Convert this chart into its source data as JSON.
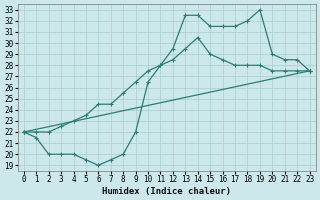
{
  "xlabel": "Humidex (Indice chaleur)",
  "bg_color": "#cce8ea",
  "grid_color": "#aacdd0",
  "line_color": "#2e7d72",
  "xlim": [
    -0.5,
    23.5
  ],
  "ylim": [
    18.5,
    33.5
  ],
  "xticks": [
    0,
    1,
    2,
    3,
    4,
    5,
    6,
    7,
    8,
    9,
    10,
    11,
    12,
    13,
    14,
    15,
    16,
    17,
    18,
    19,
    20,
    21,
    22,
    23
  ],
  "yticks": [
    19,
    20,
    21,
    22,
    23,
    24,
    25,
    26,
    27,
    28,
    29,
    30,
    31,
    32,
    33
  ],
  "line1_x": [
    0,
    1,
    2,
    3,
    4,
    5,
    6,
    7,
    8,
    9,
    10,
    11,
    12,
    13,
    14,
    15,
    16,
    17,
    18,
    19,
    20,
    21,
    22,
    23
  ],
  "line1_y": [
    22.0,
    21.5,
    20.0,
    20.0,
    20.0,
    19.5,
    19.0,
    19.5,
    20.0,
    22.0,
    26.5,
    28.0,
    29.5,
    32.5,
    32.5,
    31.5,
    31.5,
    31.5,
    32.0,
    33.0,
    29.0,
    28.5,
    28.5,
    27.5
  ],
  "line2_x": [
    0,
    1,
    2,
    3,
    4,
    5,
    6,
    7,
    8,
    9,
    10,
    11,
    12,
    13,
    14,
    15,
    16,
    17,
    18,
    19,
    20,
    21,
    22,
    23
  ],
  "line2_y": [
    22.0,
    22.0,
    22.0,
    22.5,
    23.0,
    23.5,
    24.5,
    24.5,
    25.5,
    26.5,
    27.5,
    28.0,
    28.5,
    29.5,
    30.5,
    29.0,
    28.5,
    28.0,
    28.0,
    28.0,
    27.5,
    27.5,
    27.5,
    27.5
  ],
  "line3_x": [
    0,
    23
  ],
  "line3_y": [
    22.0,
    27.5
  ],
  "marker": "+",
  "markersize": 3.5,
  "lw": 0.9,
  "tick_fontsize": 5.5,
  "xlabel_fontsize": 6.5
}
